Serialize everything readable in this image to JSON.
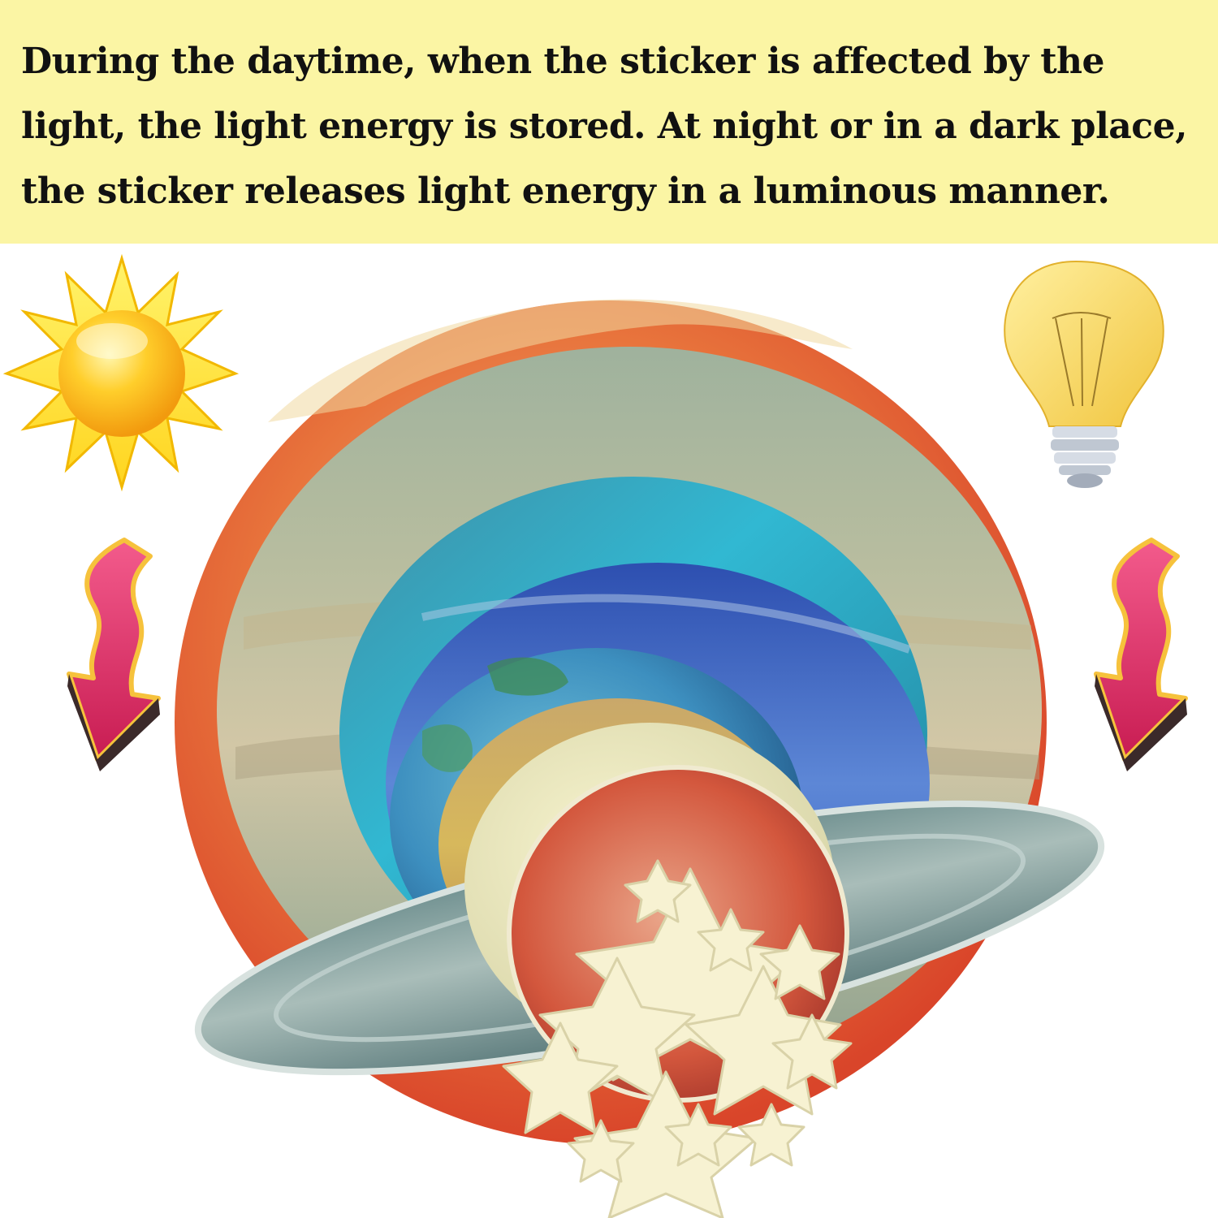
{
  "banner": {
    "text": "During the daytime, when the sticker is affected by the light, the light energy is stored. At night or in a dark place, the sticker releases light energy in a luminous manner."
  },
  "illustration": {
    "left_icon": "sun-icon",
    "right_icon": "light-bulb-icon",
    "arrows": [
      "curved-arrow-down-icon",
      "curved-arrow-down-icon"
    ],
    "objects": [
      "sun-planet",
      "jupiter-planet",
      "neptune-planet",
      "uranus-planet",
      "earth-planet",
      "venus-planet",
      "saturn-planet",
      "mars-planet",
      "glow-stars"
    ]
  },
  "colors": {
    "banner_bg": "#fbf5a4",
    "text": "#111111",
    "arrow": "#e0316e",
    "sun": "#f7c21a",
    "bulb": "#f6d15a"
  }
}
